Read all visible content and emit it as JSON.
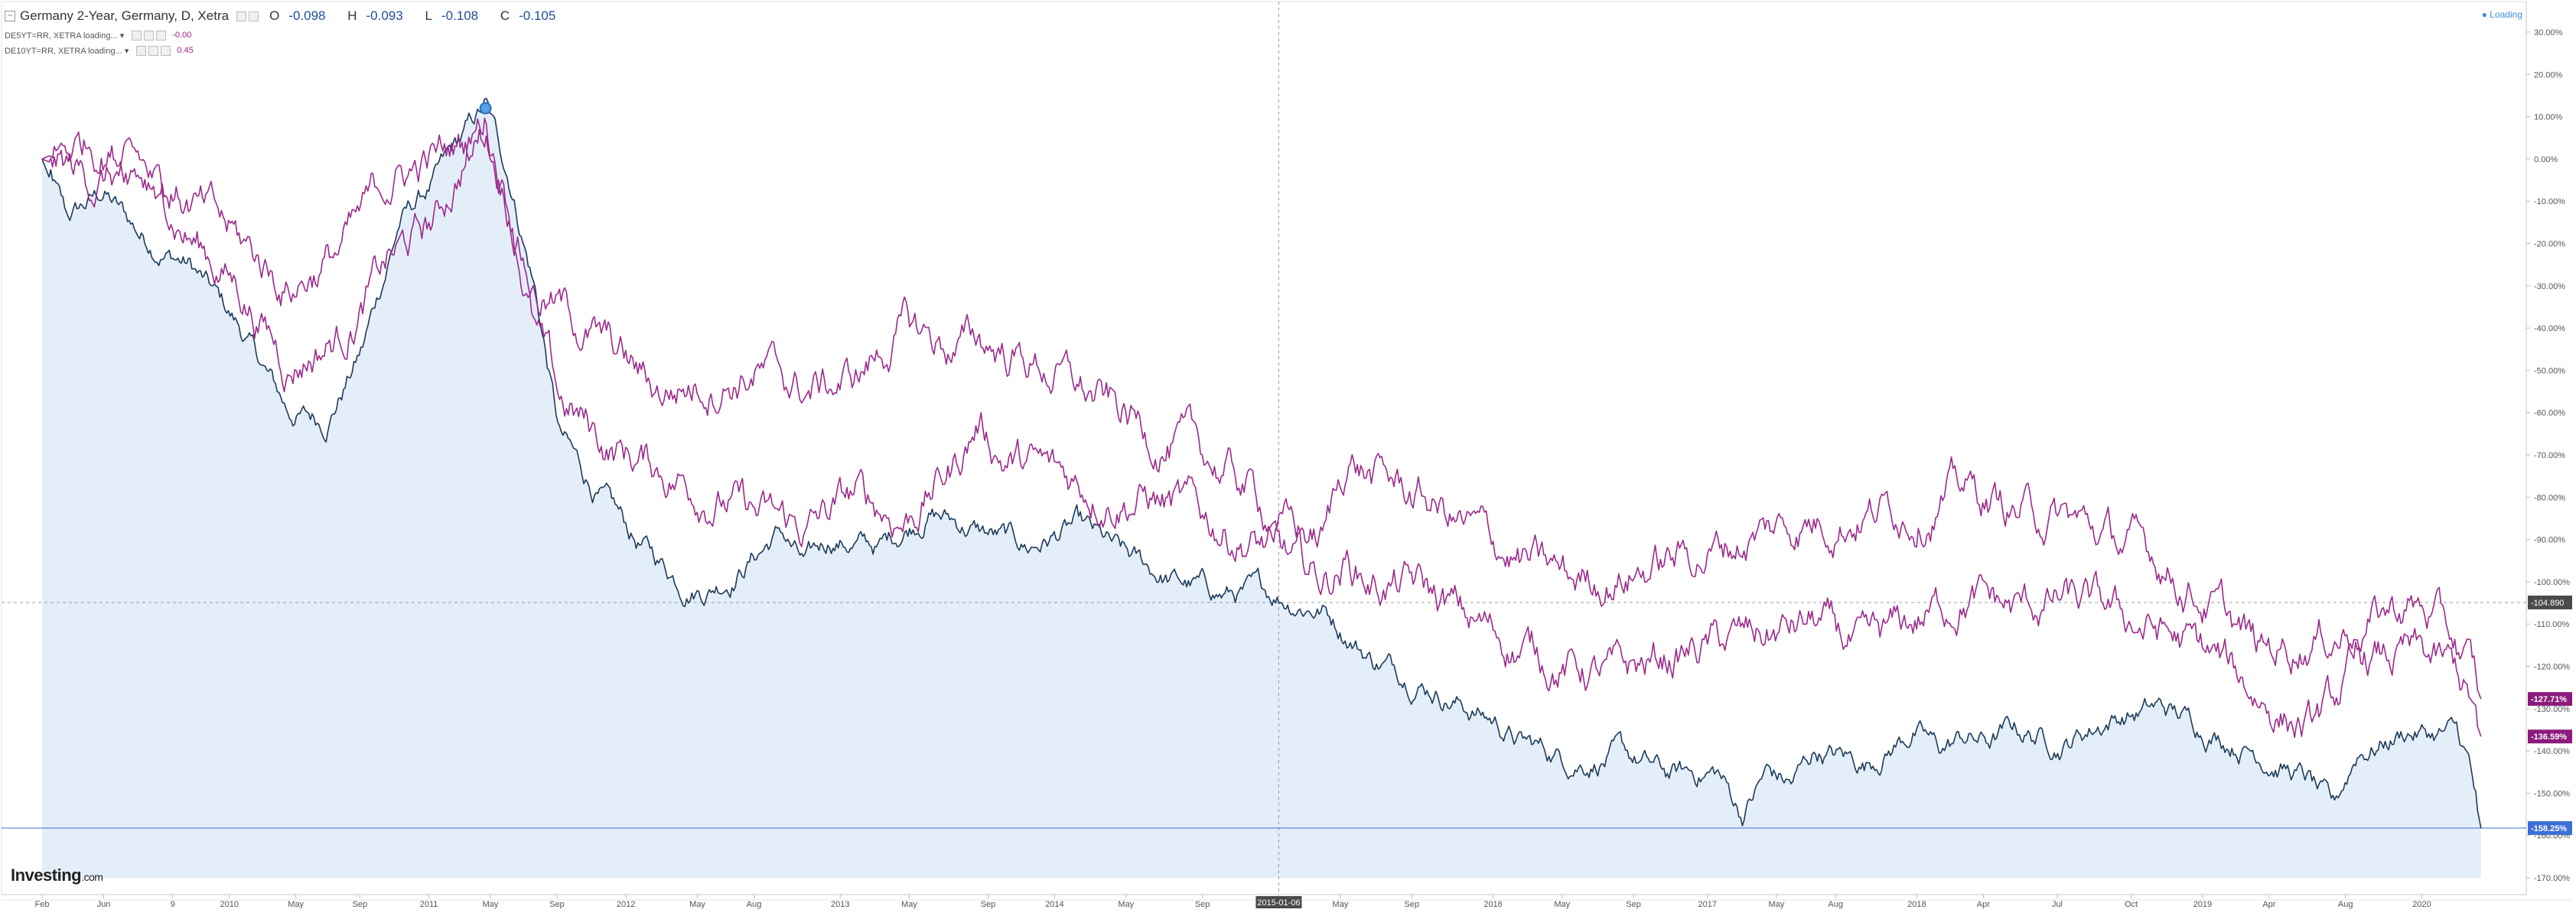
{
  "header": {
    "title": "Germany 2-Year, Germany, D, Xetra",
    "open_label": "O",
    "open": "-0.098",
    "high_label": "H",
    "high": "-0.093",
    "low_label": "L",
    "low": "-0.108",
    "close_label": "C",
    "close": "-0.105",
    "collapse_glyph": "–",
    "status": "● Loading"
  },
  "compare_series": [
    {
      "label": "DE5YT=RR, XETRA loading... ▾",
      "value": "-0.00",
      "color": "#9c2a8c"
    },
    {
      "label": "DE10YT=RR, XETRA loading... ▾",
      "value": "0.45",
      "color": "#9c2a8c"
    }
  ],
  "watermark": {
    "brand": "Investing",
    "suffix": ".com"
  },
  "chart_data": {
    "type": "line",
    "ylim": [
      -170,
      30
    ],
    "y_unit": "%",
    "y_ticks": [
      "30.00%",
      "20.00%",
      "10.00%",
      "0.00%",
      "-10.00%",
      "-20.00%",
      "-30.00%",
      "-40.00%",
      "-50.00%",
      "-60.00%",
      "-70.00%",
      "-80.00%",
      "-90.00%",
      "-100.00%",
      "-110.00%",
      "-120.00%",
      "-130.00%",
      "-140.00%",
      "-150.00%",
      "-160.00%",
      "-170.00%"
    ],
    "x_ticks": [
      "Feb",
      "Jun",
      "9",
      "2010",
      "May",
      "Sep",
      "2011",
      "May",
      "Sep",
      "2012",
      "May",
      "Aug",
      "2013",
      "May",
      "Sep",
      "2014",
      "May",
      "Sep",
      "2015-01-06",
      "May",
      "Sep",
      "2016",
      "May",
      "Sep",
      "2017",
      "May",
      "Aug",
      "2018",
      "Apr",
      "Jul",
      "Oct",
      "2019",
      "Apr",
      "Aug",
      "2020"
    ],
    "x_tick_pos": [
      0.0,
      0.025,
      0.053,
      0.076,
      0.103,
      0.129,
      0.157,
      0.182,
      0.209,
      0.237,
      0.266,
      0.289,
      0.324,
      0.352,
      0.384,
      0.411,
      0.44,
      0.471,
      0.502,
      0.527,
      0.556,
      0.589,
      0.617,
      0.646,
      0.676,
      0.704,
      0.728,
      0.761,
      0.788,
      0.818,
      0.848,
      0.877,
      0.904,
      0.935,
      0.966
    ],
    "crosshair_x": "2015-01-06",
    "crosshair_x_pos": 0.502,
    "crosshair_y": "-104.890",
    "series": [
      {
        "name": "Germany 2-Year",
        "color": "#1c3b5a",
        "area_fill": "#e4eef9",
        "last_label": "-158.25%",
        "last_label_color": "#3d6fd6",
        "smooth": 0.7,
        "x": [
          0,
          0.01,
          0.025,
          0.04,
          0.06,
          0.08,
          0.1,
          0.115,
          0.13,
          0.145,
          0.16,
          0.175,
          0.18,
          0.19,
          0.2,
          0.21,
          0.22,
          0.24,
          0.26,
          0.27,
          0.28,
          0.29,
          0.3,
          0.31,
          0.32,
          0.34,
          0.36,
          0.38,
          0.39,
          0.4,
          0.42,
          0.44,
          0.46,
          0.48,
          0.5,
          0.52,
          0.54,
          0.56,
          0.58,
          0.59,
          0.6,
          0.62,
          0.64,
          0.66,
          0.68,
          0.69,
          0.7,
          0.71,
          0.72,
          0.74,
          0.76,
          0.77,
          0.78,
          0.79,
          0.8,
          0.82,
          0.84,
          0.86,
          0.88,
          0.9,
          0.92,
          0.93,
          0.94,
          0.95,
          0.96,
          0.97,
          0.98,
          0.985,
          0.99
        ],
        "y": [
          0,
          -15,
          -8,
          -18,
          -25,
          -40,
          -60,
          -62,
          -45,
          -15,
          -5,
          8,
          12,
          -5,
          -30,
          -65,
          -75,
          -90,
          -100,
          -101,
          -98,
          -93,
          -88,
          -97,
          -90,
          -92,
          -83,
          -88,
          -90,
          -92,
          -87,
          -95,
          -100,
          -103,
          -103,
          -106,
          -118,
          -123,
          -130,
          -133,
          -138,
          -142,
          -141,
          -146,
          -145,
          -155,
          -145,
          -148,
          -140,
          -143,
          -135,
          -140,
          -137,
          -138,
          -135,
          -138,
          -132,
          -130,
          -135,
          -140,
          -147,
          -155,
          -140,
          -138,
          -135,
          -136,
          -136,
          -143,
          -158.25
        ]
      },
      {
        "name": "DE5YT=RR",
        "color": "#9c2a8c",
        "last_label": "-136.59%",
        "last_label_color": "#8c1b7c",
        "smooth": 1.2,
        "x": [
          0,
          0.02,
          0.04,
          0.06,
          0.08,
          0.1,
          0.12,
          0.13,
          0.14,
          0.16,
          0.175,
          0.18,
          0.19,
          0.2,
          0.21,
          0.23,
          0.25,
          0.27,
          0.29,
          0.31,
          0.33,
          0.35,
          0.37,
          0.38,
          0.39,
          0.41,
          0.43,
          0.45,
          0.47,
          0.49,
          0.5,
          0.51,
          0.52,
          0.53,
          0.54,
          0.56,
          0.58,
          0.6,
          0.62,
          0.64,
          0.66,
          0.68,
          0.7,
          0.72,
          0.74,
          0.76,
          0.78,
          0.8,
          0.82,
          0.84,
          0.86,
          0.88,
          0.9,
          0.92,
          0.93,
          0.94,
          0.96,
          0.97,
          0.98,
          0.985,
          0.99
        ],
        "y": [
          0,
          -5,
          -3,
          -18,
          -30,
          -48,
          -42,
          -35,
          -25,
          -15,
          5,
          10,
          -10,
          -40,
          -58,
          -68,
          -73,
          -78,
          -85,
          -88,
          -80,
          -85,
          -73,
          -62,
          -70,
          -75,
          -78,
          -80,
          -85,
          -90,
          -93,
          -98,
          -100,
          -95,
          -100,
          -102,
          -110,
          -115,
          -120,
          -123,
          -118,
          -115,
          -113,
          -110,
          -118,
          -110,
          -103,
          -107,
          -105,
          -108,
          -112,
          -118,
          -127,
          -135,
          -130,
          -120,
          -118,
          -120,
          -122,
          -128,
          -136.59
        ]
      },
      {
        "name": "DE10YT=RR",
        "color": "#9c2a8c",
        "last_label": "-127.71%",
        "last_label_color": "#8c1b7c",
        "smooth": 1.2,
        "x": [
          0,
          0.02,
          0.04,
          0.06,
          0.08,
          0.1,
          0.12,
          0.13,
          0.14,
          0.16,
          0.175,
          0.18,
          0.19,
          0.2,
          0.21,
          0.23,
          0.25,
          0.27,
          0.29,
          0.31,
          0.33,
          0.35,
          0.37,
          0.38,
          0.39,
          0.41,
          0.43,
          0.45,
          0.47,
          0.49,
          0.5,
          0.51,
          0.52,
          0.53,
          0.54,
          0.56,
          0.58,
          0.6,
          0.62,
          0.64,
          0.66,
          0.68,
          0.7,
          0.72,
          0.74,
          0.76,
          0.78,
          0.8,
          0.82,
          0.84,
          0.86,
          0.88,
          0.9,
          0.92,
          0.93,
          0.94,
          0.96,
          0.97,
          0.98,
          0.985,
          0.99
        ],
        "y": [
          0,
          5,
          0,
          -10,
          -20,
          -30,
          -22,
          -15,
          -5,
          0,
          5,
          8,
          -10,
          -30,
          -35,
          -45,
          -55,
          -52,
          -50,
          -55,
          -52,
          -40,
          -45,
          -43,
          -45,
          -50,
          -58,
          -65,
          -70,
          -78,
          -85,
          -88,
          -90,
          -70,
          -75,
          -80,
          -88,
          -95,
          -100,
          -98,
          -95,
          -92,
          -88,
          -85,
          -83,
          -82,
          -78,
          -83,
          -85,
          -90,
          -95,
          -105,
          -117,
          -113,
          -112,
          -110,
          -105,
          -108,
          -115,
          -120,
          -127.71
        ]
      }
    ]
  }
}
